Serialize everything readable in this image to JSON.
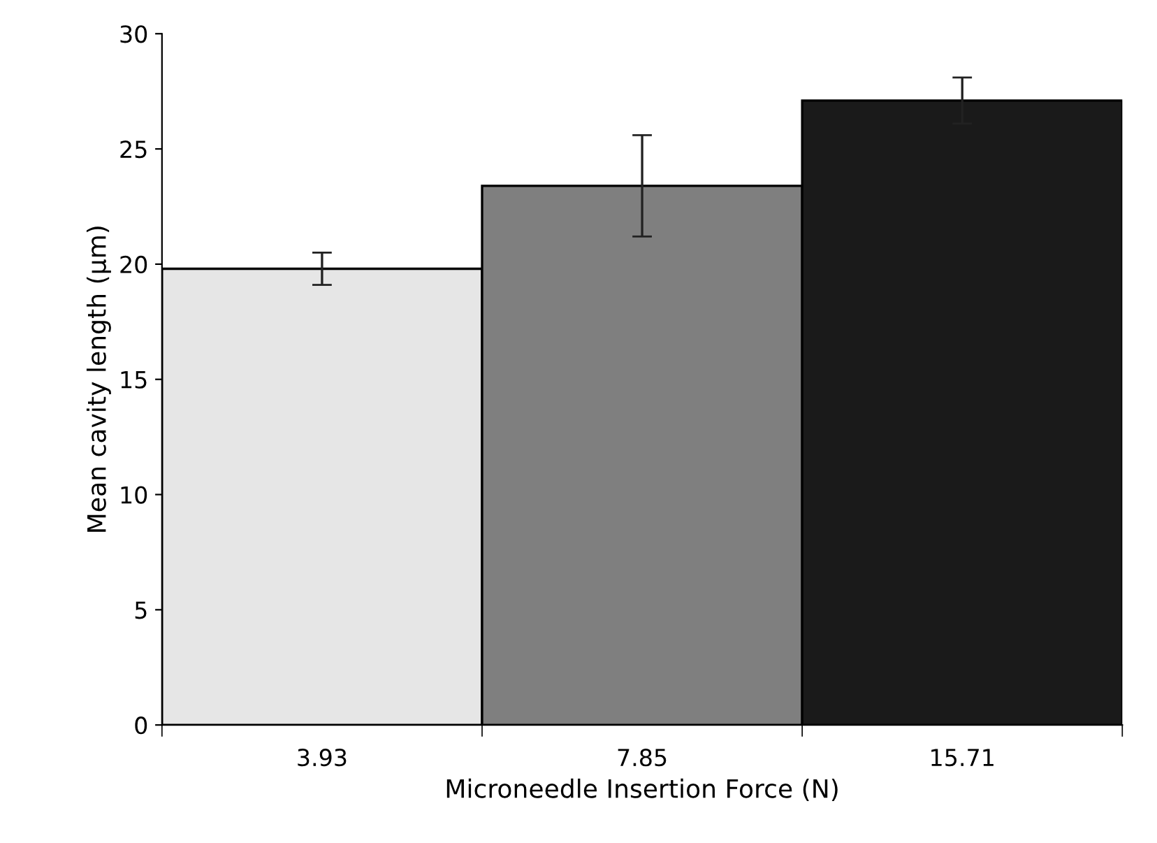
{
  "chart_data": {
    "type": "bar",
    "xlabel": "Microneedle Insertion Force (N)",
    "ylabel": "Mean cavity length (µm)",
    "categories": [
      "3.93",
      "7.85",
      "15.71"
    ],
    "values": [
      19.8,
      23.4,
      27.1
    ],
    "errors": [
      0.7,
      2.2,
      1.0
    ],
    "colors": [
      "#e6e6e6",
      "#7f7f7f",
      "#1a1a1a"
    ],
    "ylim": [
      0,
      30
    ],
    "yticks": [
      0,
      5,
      10,
      15,
      20,
      25,
      30
    ],
    "grid": false,
    "legend": false
  }
}
